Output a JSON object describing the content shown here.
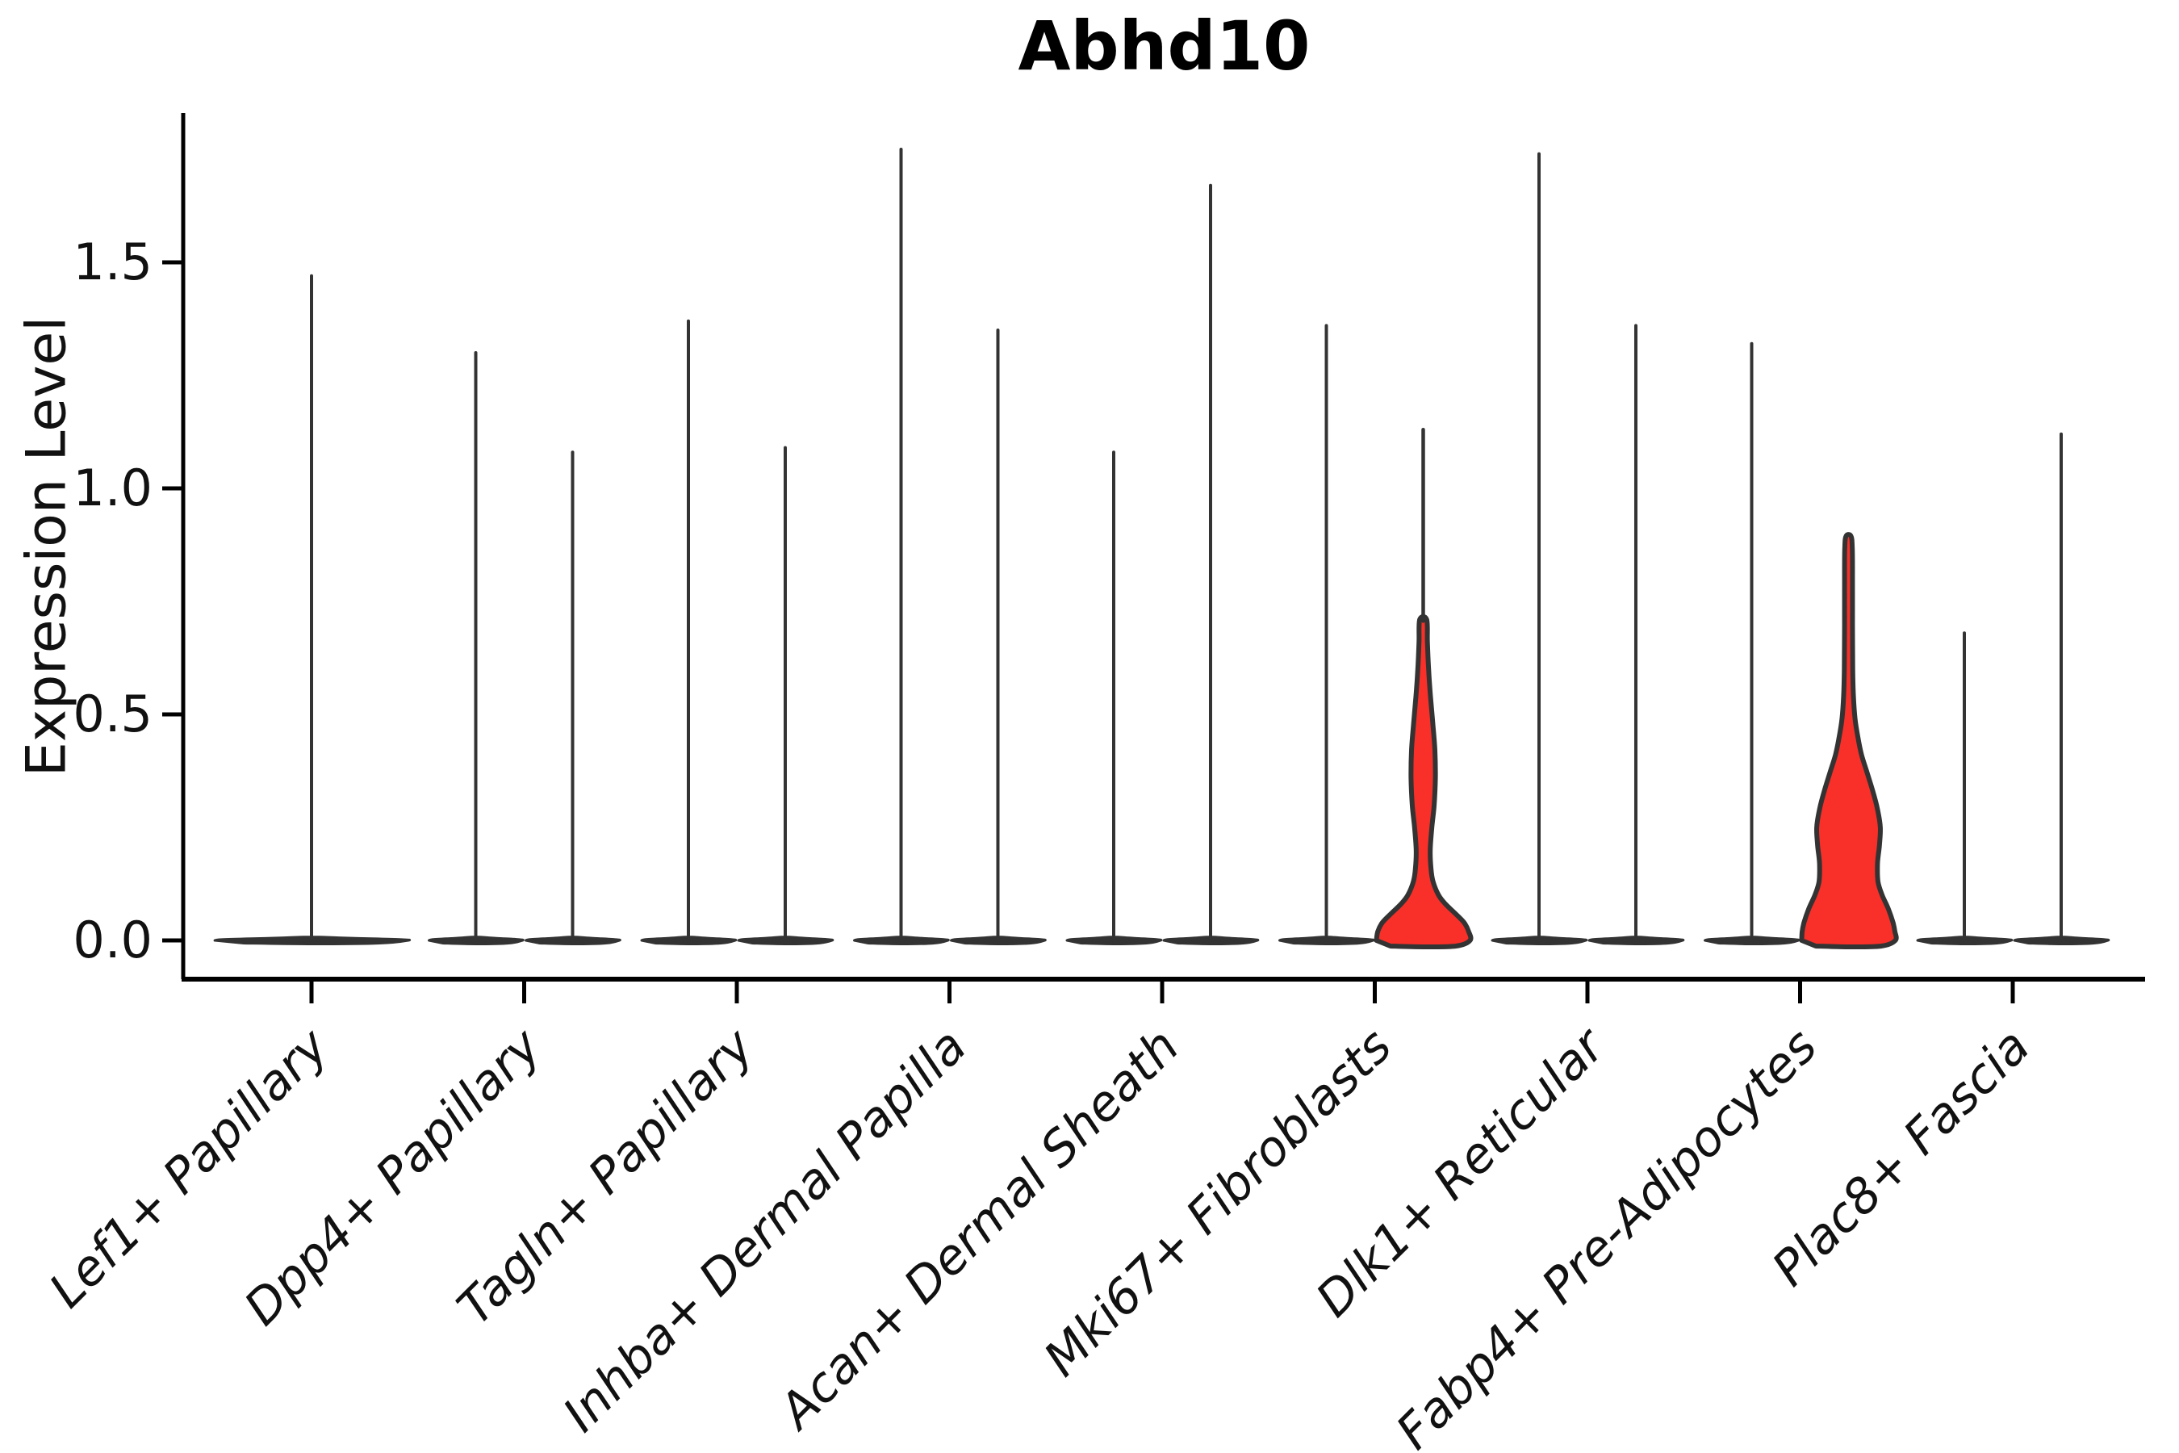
{
  "title": "Abhd10",
  "axes": {
    "ylabel": "Expression Level",
    "xlabel": ""
  },
  "chart_data": {
    "type": "violin",
    "title": "Abhd10",
    "ylabel": "Expression Level",
    "xlabel": "",
    "ylim": [
      -0.09,
      1.84
    ],
    "yticks": [
      0.0,
      0.5,
      1.0,
      1.5
    ],
    "ytick_labels": [
      "0.0",
      "0.5",
      "1.0",
      "1.5"
    ],
    "grid": false,
    "legend": "none",
    "categories": [
      "Lef1+ Papillary",
      "Dpp4+ Papillary",
      "Tagln+ Papillary",
      "Inhba+ Dermal Papilla",
      "Acan+ Dermal Sheath",
      "Mki67+ Fibroblasts",
      "Dlk1+ Reticular",
      "Fabp4+ Pre-Adipocytes",
      "Plac8+ Fascia"
    ],
    "colors": {
      "violin_outline": "#333333",
      "violin_fill_dark": "#333333",
      "highlight_red": "#F93029",
      "axis": "#000000",
      "text": "#111111"
    },
    "violins": [
      {
        "category": "Lef1+ Papillary",
        "position": 1,
        "offset": 0.0,
        "half_width": 0.455,
        "max_expression": 1.47,
        "highlighted": false,
        "profile_ref": "pancake"
      },
      {
        "category": "Dpp4+ Papillary",
        "position": 2,
        "offset": -0.2277,
        "half_width": 0.22,
        "max_expression": 1.3,
        "highlighted": false,
        "profile_ref": "pancake"
      },
      {
        "category": "Dpp4+ Papillary",
        "position": 2,
        "offset": 0.2277,
        "half_width": 0.22,
        "max_expression": 1.08,
        "highlighted": false,
        "profile_ref": "pancake"
      },
      {
        "category": "Tagln+ Papillary",
        "position": 3,
        "offset": -0.2277,
        "half_width": 0.22,
        "max_expression": 1.37,
        "highlighted": false,
        "profile_ref": "pancake"
      },
      {
        "category": "Tagln+ Papillary",
        "position": 3,
        "offset": 0.2277,
        "half_width": 0.22,
        "max_expression": 1.09,
        "highlighted": false,
        "profile_ref": "pancake"
      },
      {
        "category": "Inhba+ Dermal Papilla",
        "position": 4,
        "offset": -0.2277,
        "half_width": 0.22,
        "max_expression": 1.75,
        "highlighted": false,
        "profile_ref": "pancake"
      },
      {
        "category": "Inhba+ Dermal Papilla",
        "position": 4,
        "offset": 0.2277,
        "half_width": 0.22,
        "max_expression": 1.35,
        "highlighted": false,
        "profile_ref": "pancake"
      },
      {
        "category": "Acan+ Dermal Sheath",
        "position": 5,
        "offset": -0.2277,
        "half_width": 0.22,
        "max_expression": 1.08,
        "highlighted": false,
        "profile_ref": "pancake"
      },
      {
        "category": "Acan+ Dermal Sheath",
        "position": 5,
        "offset": 0.2277,
        "half_width": 0.22,
        "max_expression": 1.67,
        "highlighted": false,
        "profile_ref": "pancake"
      },
      {
        "category": "Mki67+ Fibroblasts",
        "position": 6,
        "offset": -0.2277,
        "half_width": 0.22,
        "max_expression": 1.36,
        "highlighted": false,
        "profile_ref": "pancake"
      },
      {
        "category": "Mki67+ Fibroblasts",
        "position": 6,
        "offset": 0.2277,
        "half_width": 0.22,
        "max_expression": 1.13,
        "highlighted": true,
        "profile_ref": "mki67_highlight"
      },
      {
        "category": "Dlk1+ Reticular",
        "position": 7,
        "offset": -0.2277,
        "half_width": 0.22,
        "max_expression": 1.74,
        "highlighted": false,
        "profile_ref": "pancake"
      },
      {
        "category": "Dlk1+ Reticular",
        "position": 7,
        "offset": 0.2277,
        "half_width": 0.22,
        "max_expression": 1.36,
        "highlighted": false,
        "profile_ref": "pancake"
      },
      {
        "category": "Fabp4+ Pre-Adipocytes",
        "position": 8,
        "offset": -0.2277,
        "half_width": 0.22,
        "max_expression": 1.32,
        "highlighted": false,
        "profile_ref": "pancake"
      },
      {
        "category": "Fabp4+ Pre-Adipocytes",
        "position": 8,
        "offset": 0.2277,
        "half_width": 0.22,
        "max_expression": 0.9,
        "highlighted": true,
        "profile_ref": "fabp4_highlight"
      },
      {
        "category": "Plac8+ Fascia",
        "position": 9,
        "offset": -0.2277,
        "half_width": 0.22,
        "max_expression": 0.68,
        "highlighted": false,
        "profile_ref": "pancake"
      },
      {
        "category": "Plac8+ Fascia",
        "position": 9,
        "offset": 0.2277,
        "half_width": 0.22,
        "max_expression": 1.12,
        "highlighted": false,
        "profile_ref": "pancake"
      }
    ],
    "profiles": {
      "pancake": [
        [
          0,
          1
        ],
        [
          0.002,
          0.93
        ],
        [
          0.004,
          0.62
        ],
        [
          0.006,
          0.28
        ],
        [
          0.0075,
          0.08
        ]
      ],
      "mki67_highlight": [
        [
          0,
          1
        ],
        [
          0.02,
          0.97
        ],
        [
          0.04,
          0.87
        ],
        [
          0.06,
          0.68
        ],
        [
          0.08,
          0.48
        ],
        [
          0.1,
          0.33
        ],
        [
          0.13,
          0.21
        ],
        [
          0.16,
          0.165
        ],
        [
          0.2,
          0.15
        ],
        [
          0.25,
          0.185
        ],
        [
          0.3,
          0.235
        ],
        [
          0.36,
          0.26
        ],
        [
          0.42,
          0.25
        ],
        [
          0.48,
          0.205
        ],
        [
          0.54,
          0.155
        ],
        [
          0.6,
          0.115
        ],
        [
          0.66,
          0.09
        ],
        [
          0.71,
          0.075
        ]
      ],
      "fabp4_highlight": [
        [
          0,
          1
        ],
        [
          0.02,
          0.99
        ],
        [
          0.04,
          0.95
        ],
        [
          0.07,
          0.85
        ],
        [
          0.1,
          0.72
        ],
        [
          0.13,
          0.63
        ],
        [
          0.17,
          0.62
        ],
        [
          0.21,
          0.66
        ],
        [
          0.25,
          0.68
        ],
        [
          0.29,
          0.62
        ],
        [
          0.33,
          0.52
        ],
        [
          0.37,
          0.4
        ],
        [
          0.41,
          0.28
        ],
        [
          0.45,
          0.2
        ],
        [
          0.49,
          0.14
        ],
        [
          0.54,
          0.105
        ],
        [
          0.6,
          0.09
        ],
        [
          0.7,
          0.085
        ],
        [
          0.8,
          0.085
        ],
        [
          0.87,
          0.08
        ],
        [
          0.895,
          0.05
        ]
      ]
    }
  }
}
